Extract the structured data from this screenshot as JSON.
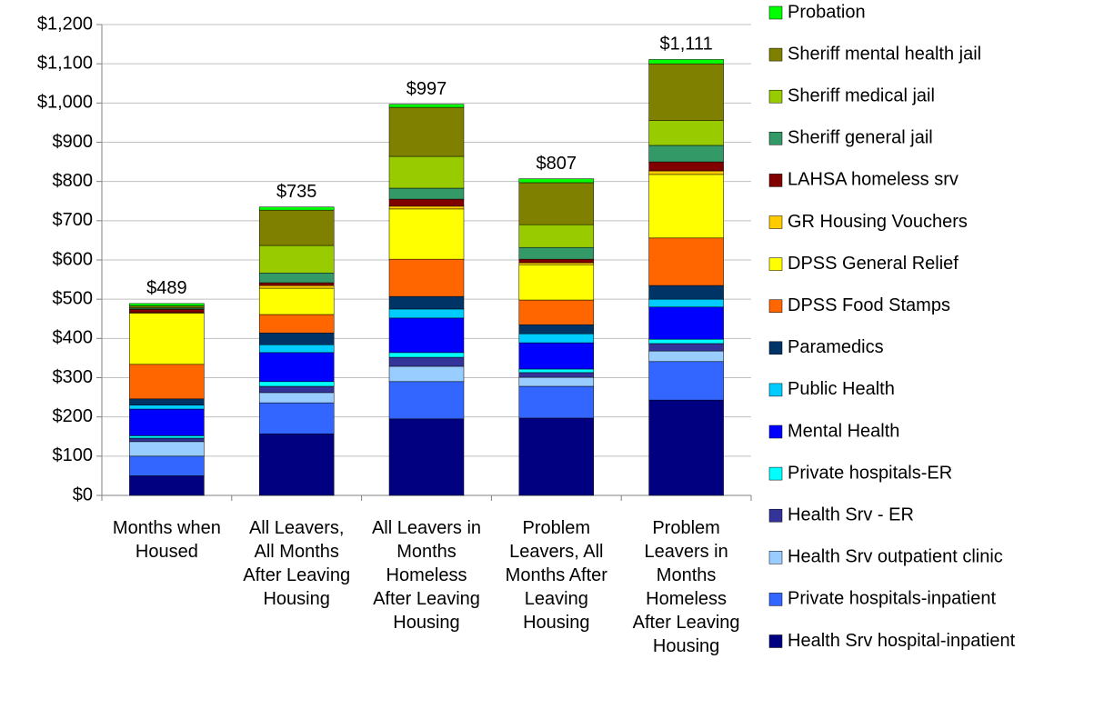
{
  "chart_data": {
    "type": "stacked_bar",
    "categories": [
      "Months when Housed",
      "All Leavers, All Months After Leaving Housing",
      "All Leavers in Months Homeless After Leaving Housing",
      "Problem Leavers, All Months After Leaving Housing",
      "Problem Leavers in Months Homeless After Leaving Housing"
    ],
    "series": [
      {
        "name": "Health Srv hospital-inpatient",
        "color": "#000080",
        "values": [
          50,
          157,
          195,
          197,
          243
        ]
      },
      {
        "name": "Private hospitals-inpatient",
        "color": "#3366ff",
        "values": [
          50,
          79,
          95,
          81,
          98
        ]
      },
      {
        "name": "Health Srv outpatient clinic",
        "color": "#99ccff",
        "values": [
          37,
          26,
          39,
          23,
          27
        ]
      },
      {
        "name": "Health Srv - ER",
        "color": "#333399",
        "values": [
          9,
          16,
          23,
          12,
          19
        ]
      },
      {
        "name": "Private hospitals-ER",
        "color": "#00ffff",
        "values": [
          6,
          12,
          12,
          9,
          11
        ]
      },
      {
        "name": "Mental Health",
        "color": "#0000ff",
        "values": [
          68,
          74,
          88,
          67,
          82
        ]
      },
      {
        "name": "Public Health",
        "color": "#00ccff",
        "values": [
          10,
          20,
          23,
          23,
          20
        ]
      },
      {
        "name": "Paramedics",
        "color": "#003366",
        "values": [
          16,
          30,
          32,
          23,
          35
        ]
      },
      {
        "name": "DPSS Food Stamps",
        "color": "#ff6600",
        "values": [
          88,
          47,
          95,
          63,
          121
        ]
      },
      {
        "name": "DPSS General Relief",
        "color": "#ffff00",
        "values": [
          130,
          67,
          128,
          90,
          162
        ]
      },
      {
        "name": "GR Housing Vouchers",
        "color": "#ffcc00",
        "values": [
          2,
          7,
          7,
          5,
          9
        ]
      },
      {
        "name": "LAHSA homeless srv",
        "color": "#800000",
        "values": [
          8,
          7,
          18,
          9,
          23
        ]
      },
      {
        "name": "Sheriff general jail",
        "color": "#339966",
        "values": [
          3,
          25,
          28,
          30,
          42
        ]
      },
      {
        "name": "Sheriff medical jail",
        "color": "#99cc00",
        "values": [
          2,
          70,
          81,
          58,
          63
        ]
      },
      {
        "name": "Sheriff mental health jail",
        "color": "#808000",
        "values": [
          4,
          90,
          125,
          107,
          145
        ]
      },
      {
        "name": "Probation",
        "color": "#00ff00",
        "values": [
          6,
          8,
          8,
          10,
          11
        ]
      }
    ],
    "totals": {
      "values": [
        489,
        735,
        997,
        807,
        1111
      ],
      "value_labels": [
        "$489",
        "$735",
        "$997",
        "$807",
        "$1,111"
      ]
    },
    "ylim": [
      0,
      1200
    ],
    "yticks": [
      {
        "value": 0,
        "label": "$0"
      },
      {
        "value": 100,
        "label": "$100"
      },
      {
        "value": 200,
        "label": "$200"
      },
      {
        "value": 300,
        "label": "$300"
      },
      {
        "value": 400,
        "label": "$400"
      },
      {
        "value": 500,
        "label": "$500"
      },
      {
        "value": 600,
        "label": "$600"
      },
      {
        "value": 700,
        "label": "$700"
      },
      {
        "value": 800,
        "label": "$800"
      },
      {
        "value": 900,
        "label": "$900"
      },
      {
        "value": 1000,
        "label": "$1,000"
      },
      {
        "value": 1100,
        "label": "$1,100"
      },
      {
        "value": 1200,
        "label": "$1,200"
      }
    ],
    "grid": true,
    "legend": "right"
  }
}
